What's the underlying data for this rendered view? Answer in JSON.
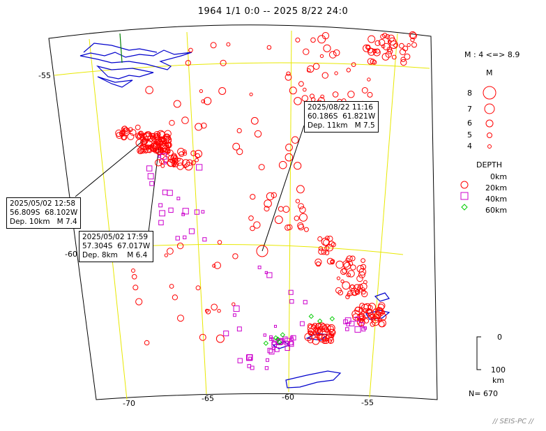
{
  "title": "1964 1/1 0:0 -- 2025 8/22 24:0",
  "axes": {
    "lon_labels": [
      "-70",
      "-65",
      "-60",
      "-55"
    ],
    "lat_labels": [
      "-55",
      "-60"
    ]
  },
  "callouts": [
    {
      "line1": "2025/08/22 11:16",
      "line2": "60.186S  61.821W",
      "line3": "Dep. 11km   M 7.5"
    },
    {
      "line1": "2025/05/02 12:58",
      "line2": "56.809S  68.102W",
      "line3": "Dep. 10km   M 7.4"
    },
    {
      "line1": "2025/05/02 17:59",
      "line2": "57.304S  67.017W",
      "line3": "Dep. 8km    M 6.4"
    }
  ],
  "legend": {
    "mag_range": "M : 4 <=> 8.9",
    "mag_title": "M",
    "mag_levels": [
      "8",
      "7",
      "6",
      "5",
      "4"
    ],
    "depth_title": "DEPTH",
    "depth_levels": [
      "0km",
      "20km",
      "40km",
      "60km"
    ],
    "depth_bar_top": "0",
    "depth_bar_bottom": "100",
    "depth_bar_unit": "km"
  },
  "count": "N= 670",
  "footer": "// SEIS-PC //",
  "colors": {
    "grid": "#e8e800",
    "coast": "#0000cc",
    "shallow": "#ff0000",
    "mid": "#cc00cc",
    "deep": "#00cc00"
  }
}
